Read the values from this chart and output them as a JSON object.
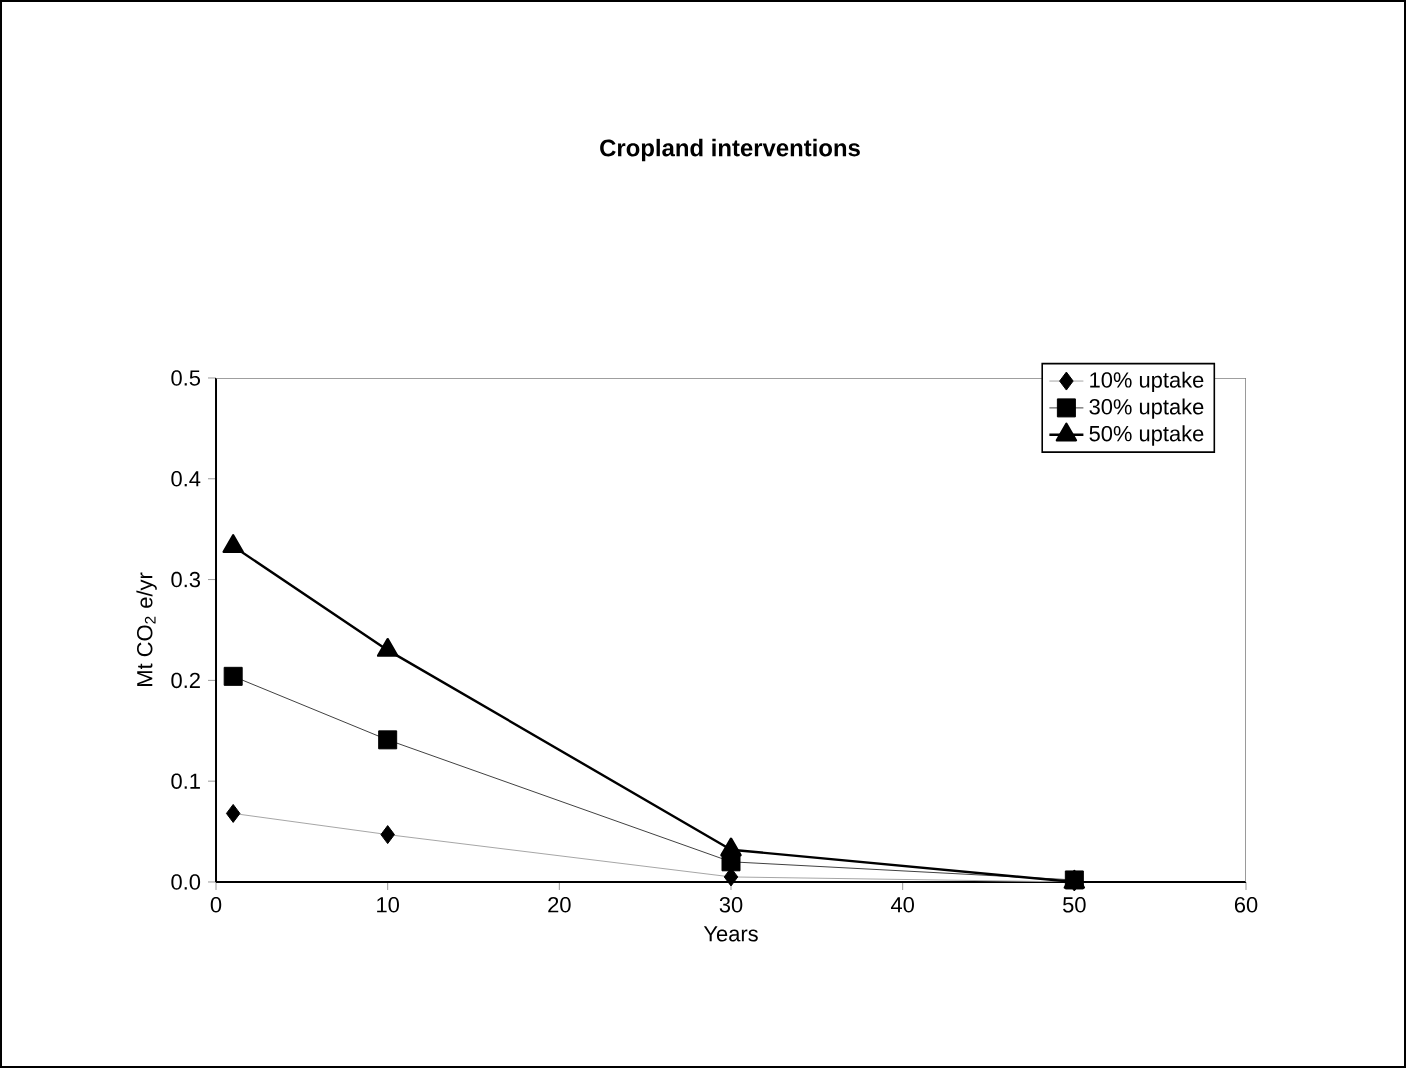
{
  "chart_data": {
    "type": "line",
    "title": "Cropland interventions",
    "xlabel": "Years",
    "ylabel": "Mt CO$_{2}$ e/yr",
    "x": [
      1,
      10,
      30,
      50
    ],
    "series": [
      {
        "name": "10% uptake",
        "color": "#000000",
        "marker": "diamond",
        "values": [
          0.068,
          0.047,
          0.005,
          0.0
        ]
      },
      {
        "name": "30% uptake",
        "color": "#000000",
        "marker": "square",
        "values": [
          0.204,
          0.141,
          0.02,
          0.002
        ]
      },
      {
        "name": "50% uptake",
        "color": "#000000",
        "marker": "triangle",
        "values": [
          0.333,
          0.23,
          0.032,
          0.0
        ]
      }
    ],
    "xlim": [
      0,
      60
    ],
    "xticks": [
      0,
      10,
      20,
      30,
      40,
      50,
      60
    ],
    "ylim": [
      0,
      0.5
    ],
    "yticks": [
      {
        "value": 0,
        "label": "0.0"
      },
      {
        "value": 0.1,
        "label": "0.1"
      },
      {
        "value": 0.2,
        "label": "0.2"
      },
      {
        "value": 0.3,
        "label": "0.3"
      },
      {
        "value": 0.4,
        "label": "0.4"
      },
      {
        "value": 0.5,
        "label": "0.5"
      }
    ],
    "grid": false,
    "legend": "top right"
  }
}
